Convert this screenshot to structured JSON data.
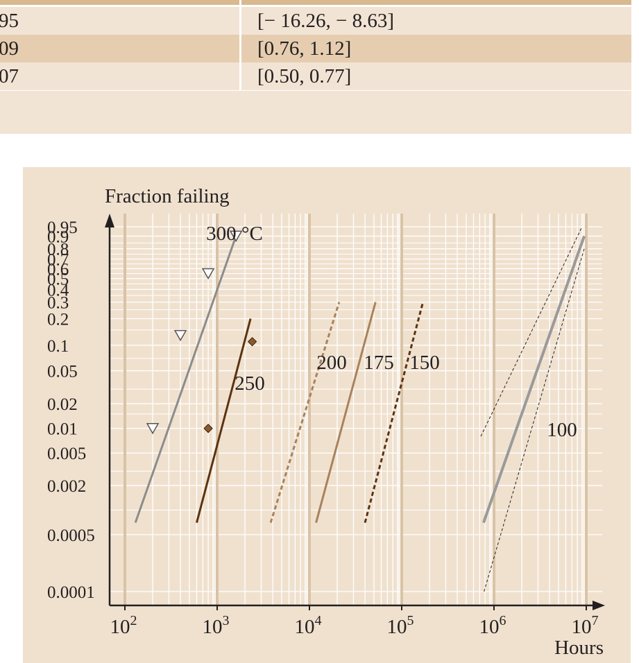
{
  "table": {
    "rows": [
      {
        "col1": "95",
        "col2": "[− 16.26, − 8.63]"
      },
      {
        "col1": "09",
        "col2": "[0.76, 1.12]"
      },
      {
        "col1": "07",
        "col2": "[0.50, 0.77]"
      }
    ],
    "colors": {
      "row_light": "#f2e4d4",
      "row_dark": "#e6cdb0",
      "rule": "#d9b98f"
    }
  },
  "chart_data": {
    "type": "line",
    "title": "",
    "ylabel": "Fraction failing",
    "xlabel": "Hours",
    "x_scale": "log",
    "y_scale": "weibull",
    "xlim": [
      100,
      10000000
    ],
    "ylim": [
      0.0001,
      0.95
    ],
    "x_ticks": [
      {
        "base": "10",
        "exp": "2"
      },
      {
        "base": "10",
        "exp": "3"
      },
      {
        "base": "10",
        "exp": "4"
      },
      {
        "base": "10",
        "exp": "5"
      },
      {
        "base": "10",
        "exp": "6"
      },
      {
        "base": "10",
        "exp": "7"
      }
    ],
    "y_ticks": [
      "0.95",
      "0.9",
      "0.8",
      "0.7",
      "0.6",
      "0.5",
      "0.4",
      "0.3",
      "0.2",
      "0.1",
      "0.05",
      "0.02",
      "0.01",
      "0.005",
      "0.002",
      "0.0005",
      "0.0001"
    ],
    "grid": true,
    "series": [
      {
        "name": "300 °C",
        "color": "#8c8c8c",
        "style": "solid",
        "line": [
          [
            130,
            0.0007
          ],
          [
            1600,
            0.9
          ]
        ],
        "markers": "triangle",
        "marker_color": "#ffffff",
        "points": [
          [
            200,
            0.01
          ],
          [
            400,
            0.13
          ],
          [
            800,
            0.55
          ],
          [
            1600,
            0.9
          ]
        ]
      },
      {
        "name": "250",
        "color": "#5c3311",
        "style": "solid",
        "line": [
          [
            600,
            0.0007
          ],
          [
            2300,
            0.2
          ]
        ],
        "markers": "diamond",
        "marker_color": "#8b5a2b",
        "points": [
          [
            800,
            0.01
          ],
          [
            2400,
            0.11
          ]
        ]
      },
      {
        "name": "200",
        "color": "#a8825c",
        "style": "dashed",
        "line": [
          [
            3800,
            0.0007
          ],
          [
            21000,
            0.3
          ]
        ]
      },
      {
        "name": "175",
        "color": "#a8825c",
        "style": "solid",
        "line": [
          [
            11800,
            0.0007
          ],
          [
            52000,
            0.3
          ]
        ]
      },
      {
        "name": "150",
        "color": "#5c3311",
        "style": "dashed",
        "line": [
          [
            40000,
            0.0007
          ],
          [
            170000,
            0.3
          ]
        ]
      },
      {
        "name": "100",
        "color": "#9a9a9a",
        "style": "solid",
        "line": [
          [
            770000,
            0.0007
          ],
          [
            9500000,
            0.9
          ]
        ],
        "band_lower": [
          [
            780000,
            0.0001
          ],
          [
            9500000,
            0.8
          ]
        ],
        "band_upper": [
          [
            720000,
            0.008
          ],
          [
            9000000,
            0.95
          ]
        ]
      }
    ],
    "colors": {
      "panel": "#f0e1cf",
      "grid_minor": "#ffffff",
      "grid_major": "#d9c3a5",
      "axis": "#231f20"
    }
  }
}
